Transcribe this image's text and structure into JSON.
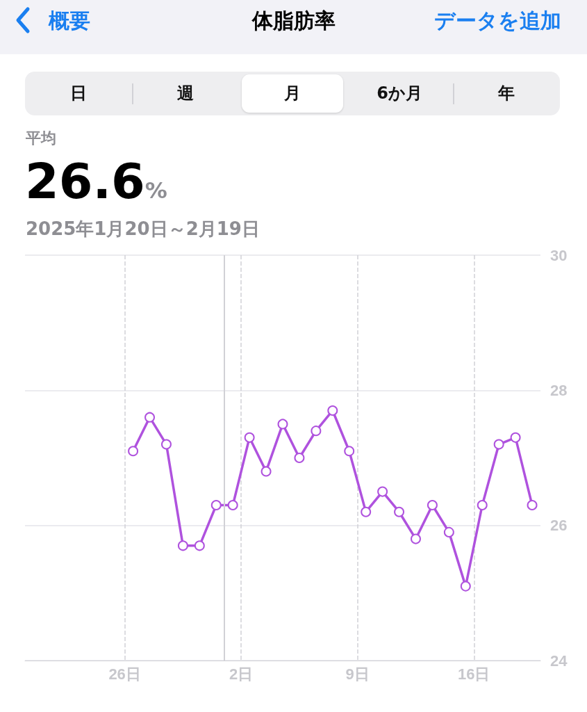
{
  "chart_data": {
    "type": "line",
    "title": "体脂肪率",
    "subtitle": "2025年1月20日～2月19日",
    "annotations": [
      "概要",
      "データを追加",
      "日",
      "週",
      "月",
      "6か月",
      "年",
      "平均",
      "26.6%"
    ],
    "x": [
      "2025-01-26T12:00",
      "2025-01-27T12:00",
      "2025-01-28T12:00",
      "2025-01-29T12:00",
      "2025-01-30T12:00",
      "2025-01-31T12:00",
      "2025-02-01T12:00",
      "2025-02-02T12:00",
      "2025-02-03T12:00",
      "2025-02-04T12:00",
      "2025-02-05T12:00",
      "2025-02-06T12:00",
      "2025-02-07T12:00",
      "2025-02-08T12:00",
      "2025-02-09T12:00",
      "2025-02-10T12:00",
      "2025-02-11T12:00",
      "2025-02-12T12:00",
      "2025-02-13T12:00",
      "2025-02-14T12:00",
      "2025-02-15T12:00",
      "2025-02-16T12:00",
      "2025-02-17T12:00",
      "2025-02-18T12:00",
      "2025-02-19T12:00"
    ],
    "series": [
      {
        "color": "#af52de",
        "values": [
          27.1,
          27.6,
          27.2,
          25.7,
          25.7,
          26.3,
          26.3,
          27.3,
          26.8,
          27.5,
          27.0,
          27.4,
          27.7,
          27.1,
          26.2,
          26.5,
          26.2,
          25.8,
          26.3,
          25.9,
          25.1,
          26.3,
          27.2,
          27.3,
          26.3
        ]
      }
    ],
    "xlim": [
      "2025-01-20",
      "2025-02-20"
    ],
    "xticks": [
      {
        "value": "2025-01-26",
        "label": "26日"
      },
      {
        "value": "2025-02-02",
        "label": "2日"
      },
      {
        "value": "2025-02-09",
        "label": "9日"
      },
      {
        "value": "2025-02-16",
        "label": "16日"
      }
    ],
    "ylim": [
      24,
      30
    ],
    "yticks": [
      24,
      26,
      28,
      30
    ],
    "ref_lines": [
      {
        "axis": "x",
        "value": "2025-02-01",
        "color": "#d1d1d6",
        "line_style": "solid"
      }
    ],
    "grid": true,
    "marker": "circle",
    "line_style": "solid"
  }
}
